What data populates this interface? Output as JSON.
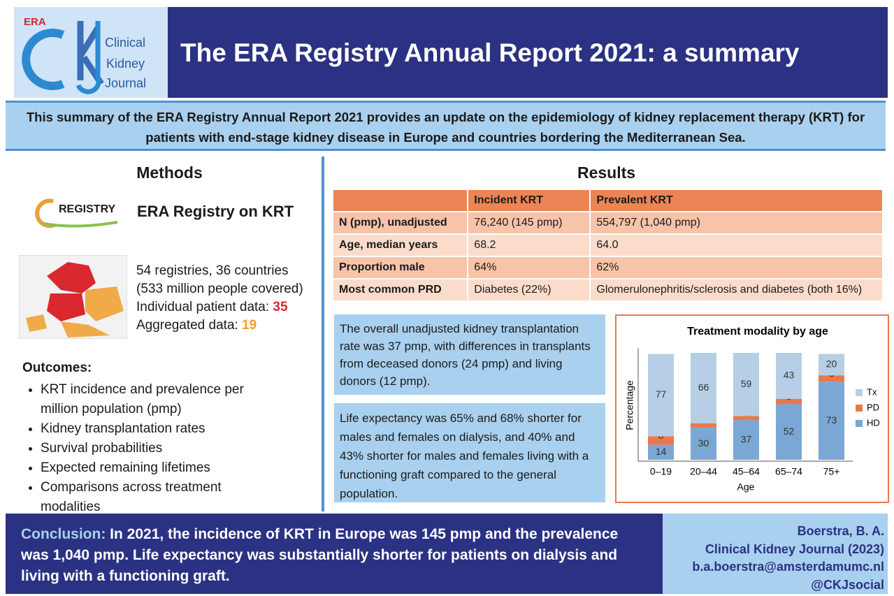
{
  "header": {
    "logo_era": "ERA",
    "logo_journal": [
      "Clinical",
      "Kidney",
      "Journal"
    ],
    "title": "The ERA Registry Annual Report 2021: a summary"
  },
  "summary": "This summary of the ERA Registry Annual Report 2021 provides an update on the epidemiology of kidney replacement therapy (KRT) for patients with end-stage kidney disease in Europe and countries bordering the Mediterranean Sea.",
  "methods": {
    "heading": "Methods",
    "registry_logo": "REGISTRY",
    "registry_title": "ERA Registry on KRT",
    "stats": [
      "54 registries, 36 countries",
      "(533 million people covered)"
    ],
    "individual_label": "Individual patient data: ",
    "individual_value": "35",
    "aggregated_label": "Aggregated data: ",
    "aggregated_value": "19",
    "outcomes_heading": "Outcomes:",
    "outcomes": [
      "KRT incidence and prevalence per million population (pmp)",
      "Kidney transplantation rates",
      "Survival probabilities",
      "Expected remaining lifetimes",
      "Comparisons across treatment modalities"
    ]
  },
  "results": {
    "heading": "Results",
    "table": {
      "header": [
        "",
        "Incident KRT",
        "Prevalent KRT"
      ],
      "rows": [
        [
          "N (pmp), unadjusted",
          "76,240 (145 pmp)",
          "554,797 (1,040 pmp)"
        ],
        [
          "Age, median years",
          "68.2",
          "64.0"
        ],
        [
          "Proportion male",
          "64%",
          "62%"
        ],
        [
          "Most common PRD",
          "Diabetes (22%)",
          "Glomerulonephritis/sclerosis and diabetes (both 16%)"
        ]
      ]
    },
    "box1": "The overall unadjusted kidney transplantation rate was 37 pmp, with differences in transplants from deceased donors (24 pmp) and living donors (12 pmp).",
    "box2": "Life expectancy was 65% and 68% shorter for males and females on dialysis, and 40% and 43% shorter for males and females living with a functioning graft compared to the general population."
  },
  "chart_data": {
    "type": "bar",
    "stacked": true,
    "title": "Treatment modality by age",
    "y_label": "Percentage",
    "x_label": "Age",
    "categories": [
      "0–19",
      "20–44",
      "45–64",
      "65–74",
      "75+"
    ],
    "series": [
      {
        "name": "HD",
        "color": "#7ba7d4",
        "values": [
          14,
          30,
          37,
          52,
          73
        ]
      },
      {
        "name": "PD",
        "color": "#e8794c",
        "values": [
          8,
          4,
          4,
          5,
          6
        ]
      },
      {
        "name": "Tx",
        "color": "#b6cfe6",
        "values": [
          77,
          66,
          59,
          43,
          20
        ]
      }
    ],
    "ylim": [
      0,
      100
    ]
  },
  "conclusion": {
    "label": "Conclusion:",
    "text": " In 2021, the incidence of KRT in Europe was 145 pmp and the prevalence was 1,040 pmp. Life expectancy was substantially shorter for patients on dialysis and living with a functioning graft."
  },
  "citation": [
    "Boerstra, B. A.",
    "Clinical Kidney Journal (2023)",
    "b.a.boerstra@amsterdamumc.nl",
    "@CKJsocial"
  ]
}
